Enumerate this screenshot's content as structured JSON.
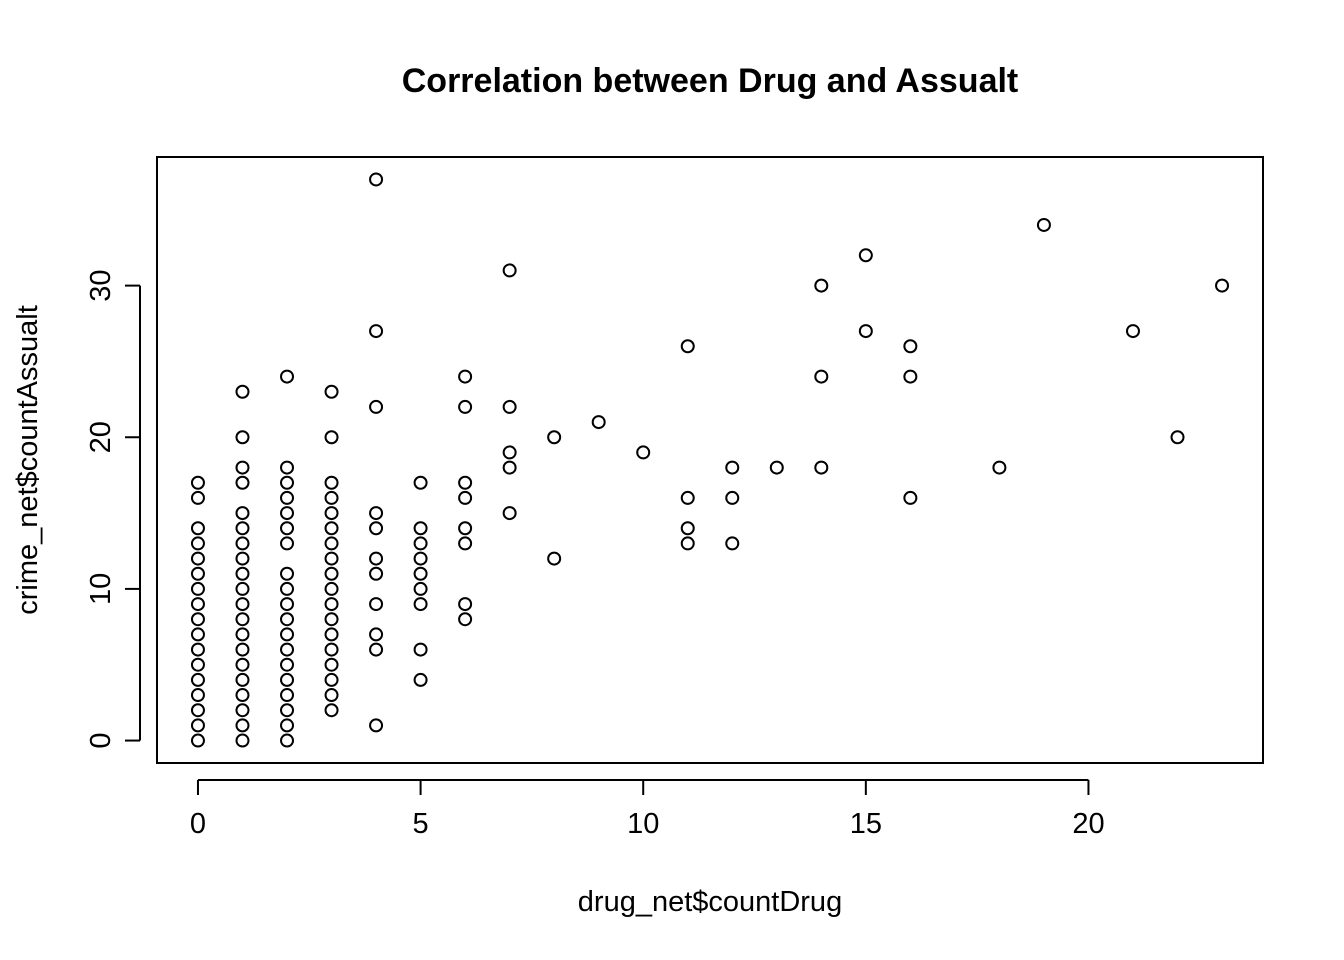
{
  "chart_data": {
    "type": "scatter",
    "title": "Correlation between Drug and Assualt",
    "xlabel": "drug_net$countDrug",
    "ylabel": "crime_net$countAssualt",
    "xlim": [
      -0.92,
      23.92
    ],
    "ylim": [
      -1.48,
      38.48
    ],
    "xticks": [
      0,
      5,
      10,
      15,
      20
    ],
    "yticks": [
      0,
      10,
      20,
      30
    ],
    "grid": false,
    "marker": "open-circle",
    "colors": {
      "points": "#000000",
      "frame": "#000000",
      "background": "#ffffff"
    },
    "points": [
      [
        0,
        0
      ],
      [
        0,
        1
      ],
      [
        0,
        2
      ],
      [
        0,
        3
      ],
      [
        0,
        4
      ],
      [
        0,
        5
      ],
      [
        0,
        6
      ],
      [
        0,
        7
      ],
      [
        0,
        8
      ],
      [
        0,
        9
      ],
      [
        0,
        10
      ],
      [
        0,
        11
      ],
      [
        0,
        12
      ],
      [
        0,
        13
      ],
      [
        0,
        14
      ],
      [
        0,
        16
      ],
      [
        0,
        17
      ],
      [
        1,
        0
      ],
      [
        1,
        1
      ],
      [
        1,
        2
      ],
      [
        1,
        3
      ],
      [
        1,
        4
      ],
      [
        1,
        5
      ],
      [
        1,
        6
      ],
      [
        1,
        7
      ],
      [
        1,
        8
      ],
      [
        1,
        9
      ],
      [
        1,
        10
      ],
      [
        1,
        11
      ],
      [
        1,
        12
      ],
      [
        1,
        13
      ],
      [
        1,
        14
      ],
      [
        1,
        15
      ],
      [
        1,
        17
      ],
      [
        1,
        18
      ],
      [
        1,
        20
      ],
      [
        1,
        23
      ],
      [
        2,
        0
      ],
      [
        2,
        1
      ],
      [
        2,
        2
      ],
      [
        2,
        3
      ],
      [
        2,
        4
      ],
      [
        2,
        5
      ],
      [
        2,
        6
      ],
      [
        2,
        7
      ],
      [
        2,
        8
      ],
      [
        2,
        9
      ],
      [
        2,
        10
      ],
      [
        2,
        11
      ],
      [
        2,
        13
      ],
      [
        2,
        14
      ],
      [
        2,
        15
      ],
      [
        2,
        16
      ],
      [
        2,
        17
      ],
      [
        2,
        18
      ],
      [
        2,
        24
      ],
      [
        3,
        2
      ],
      [
        3,
        3
      ],
      [
        3,
        4
      ],
      [
        3,
        5
      ],
      [
        3,
        6
      ],
      [
        3,
        7
      ],
      [
        3,
        8
      ],
      [
        3,
        9
      ],
      [
        3,
        10
      ],
      [
        3,
        11
      ],
      [
        3,
        12
      ],
      [
        3,
        13
      ],
      [
        3,
        14
      ],
      [
        3,
        15
      ],
      [
        3,
        16
      ],
      [
        3,
        17
      ],
      [
        3,
        20
      ],
      [
        3,
        23
      ],
      [
        4,
        1
      ],
      [
        4,
        6
      ],
      [
        4,
        7
      ],
      [
        4,
        9
      ],
      [
        4,
        11
      ],
      [
        4,
        12
      ],
      [
        4,
        14
      ],
      [
        4,
        15
      ],
      [
        4,
        22
      ],
      [
        4,
        27
      ],
      [
        4,
        37
      ],
      [
        5,
        4
      ],
      [
        5,
        6
      ],
      [
        5,
        9
      ],
      [
        5,
        10
      ],
      [
        5,
        11
      ],
      [
        5,
        12
      ],
      [
        5,
        13
      ],
      [
        5,
        14
      ],
      [
        5,
        17
      ],
      [
        6,
        8
      ],
      [
        6,
        9
      ],
      [
        6,
        13
      ],
      [
        6,
        14
      ],
      [
        6,
        16
      ],
      [
        6,
        17
      ],
      [
        6,
        22
      ],
      [
        6,
        24
      ],
      [
        7,
        15
      ],
      [
        7,
        18
      ],
      [
        7,
        19
      ],
      [
        7,
        22
      ],
      [
        7,
        31
      ],
      [
        8,
        12
      ],
      [
        8,
        20
      ],
      [
        9,
        21
      ],
      [
        10,
        19
      ],
      [
        11,
        13
      ],
      [
        11,
        14
      ],
      [
        11,
        16
      ],
      [
        11,
        26
      ],
      [
        12,
        13
      ],
      [
        12,
        16
      ],
      [
        12,
        18
      ],
      [
        13,
        18
      ],
      [
        14,
        18
      ],
      [
        14,
        24
      ],
      [
        14,
        30
      ],
      [
        15,
        27
      ],
      [
        15,
        32
      ],
      [
        16,
        16
      ],
      [
        16,
        24
      ],
      [
        16,
        26
      ],
      [
        18,
        18
      ],
      [
        19,
        34
      ],
      [
        21,
        27
      ],
      [
        22,
        20
      ],
      [
        23,
        30
      ]
    ]
  }
}
